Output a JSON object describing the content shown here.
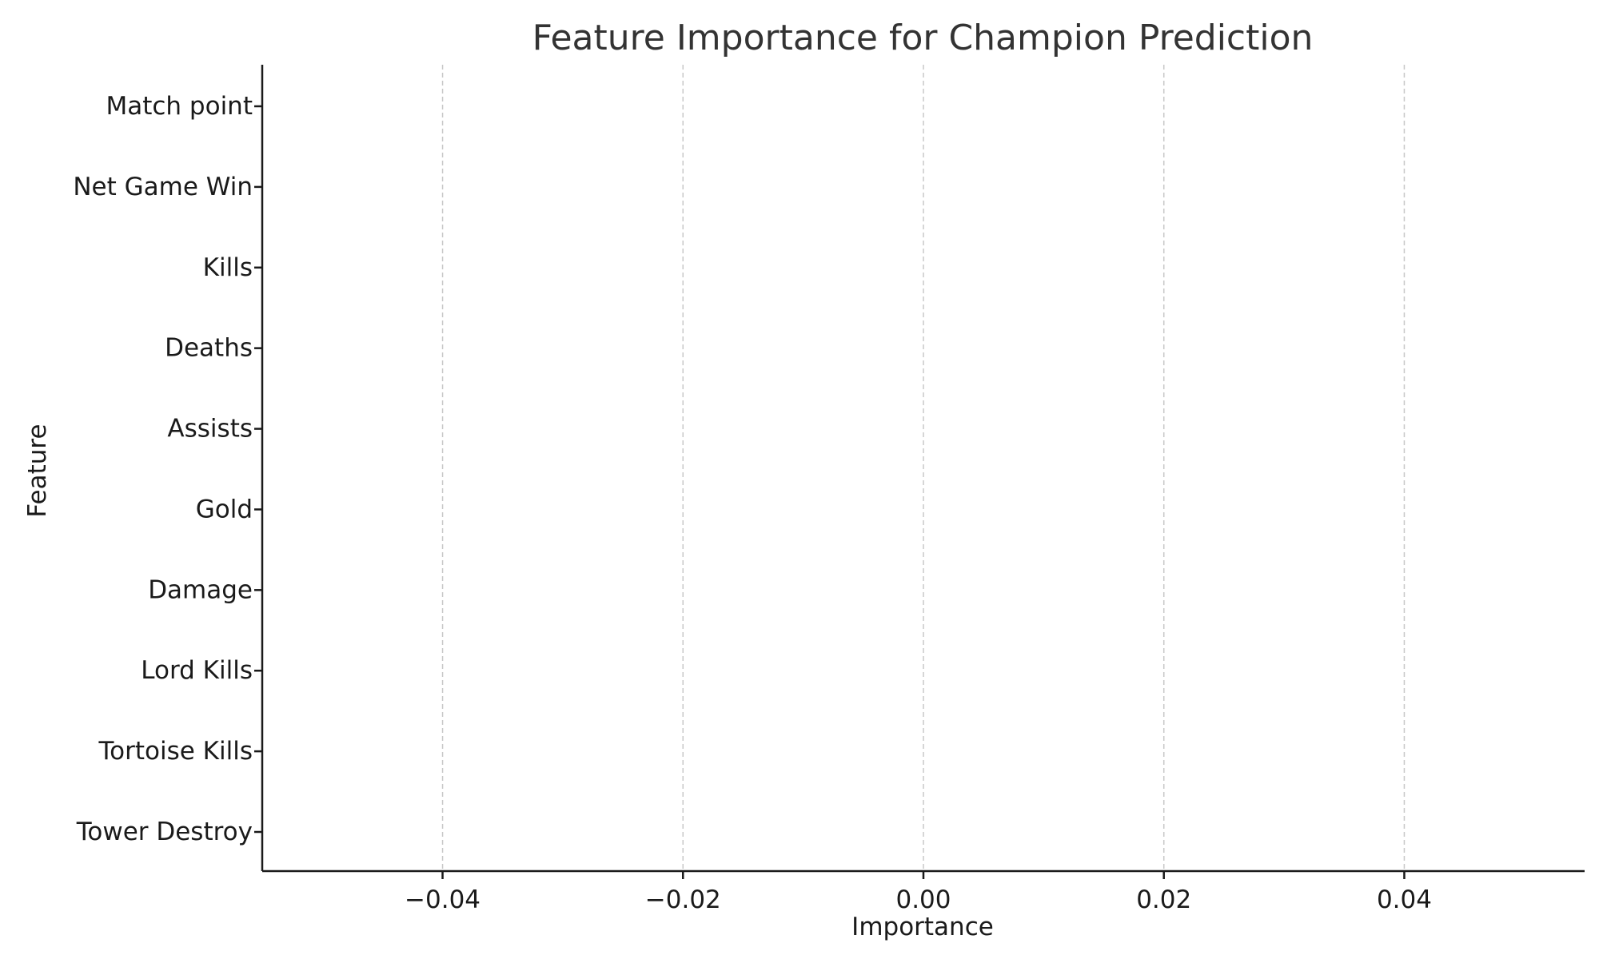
{
  "chart_data": {
    "type": "bar",
    "orientation": "horizontal",
    "title": "Feature Importance for Champion Prediction",
    "xlabel": "Importance",
    "ylabel": "Feature",
    "categories": [
      "Match point",
      "Net Game Win",
      "Kills",
      "Deaths",
      "Assists",
      "Gold",
      "Damage",
      "Lord Kills",
      "Tortoise Kills",
      "Tower Destroy"
    ],
    "values": [
      0,
      0,
      0,
      0,
      0,
      0,
      0,
      0,
      0,
      0
    ],
    "xlim": [
      -0.055,
      0.055
    ],
    "xticks": [
      -0.04,
      -0.02,
      0.0,
      0.02,
      0.04
    ],
    "xtick_labels": [
      "−0.04",
      "−0.02",
      "0.00",
      "0.02",
      "0.04"
    ],
    "grid": "x-dashed",
    "legend": "none"
  }
}
